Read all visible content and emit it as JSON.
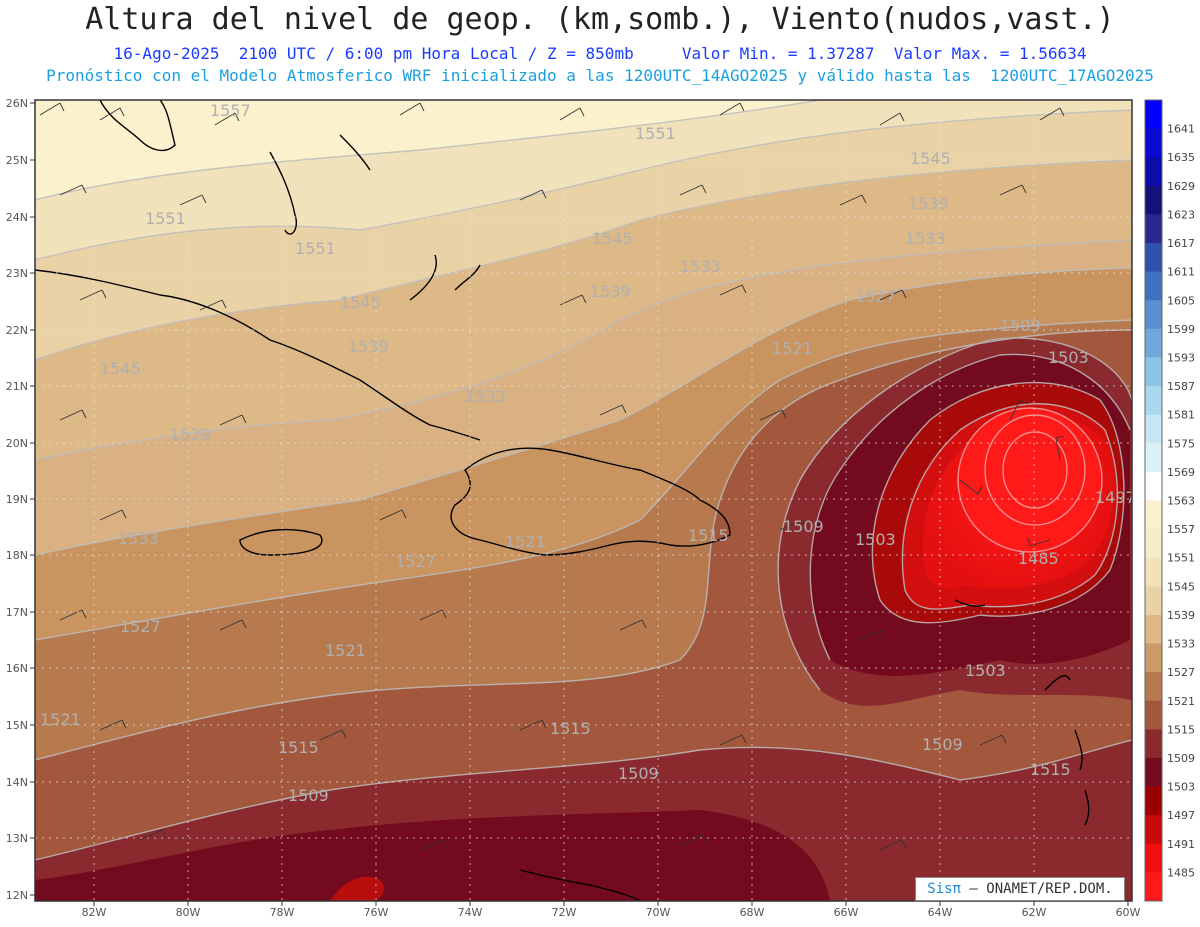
{
  "header": {
    "title": "Altura del nivel de geop. (km,somb.), Viento(nudos,vast.)",
    "line1_left": "16-Ago-2025  2100 UTC / 6:00 pm Hora Local / Z = 850mb",
    "line1_right": "Valor Min. = 1.37287  Valor Max. = 1.56634",
    "line2": "Pronóstico con el Modelo Atmosferico WRF inicializado a las 1200UTC_14AGO2025 y válido hasta las  1200UTC_17AGO2025"
  },
  "axes": {
    "lat_labels": [
      "26N",
      "25N",
      "24N",
      "23N",
      "22N",
      "21N",
      "20N",
      "19N",
      "18N",
      "17N",
      "16N",
      "15N",
      "14N",
      "13N",
      "12N"
    ],
    "lon_labels": [
      "82W",
      "80W",
      "78W",
      "76W",
      "74W",
      "72W",
      "70W",
      "68W",
      "66W",
      "64W",
      "62W",
      "60W"
    ]
  },
  "colorbar": {
    "levels": [
      "1641",
      "1635",
      "1629",
      "1623",
      "1617",
      "1611",
      "1605",
      "1599",
      "1593",
      "1587",
      "1581",
      "1575",
      "1569",
      "1563",
      "1557",
      "1551",
      "1545",
      "1539",
      "1533",
      "1527",
      "1521",
      "1515",
      "1509",
      "1503",
      "1497",
      "1491",
      "1485"
    ],
    "colors": [
      "#0000ff",
      "#0a0ad0",
      "#0c0ca8",
      "#12127a",
      "#282890",
      "#3050b0",
      "#4070c0",
      "#5a90d0",
      "#70a8dc",
      "#8cc4e6",
      "#aad8ee",
      "#c8e6f4",
      "#dcf0f8",
      "#ffffff",
      "#fbf1cc",
      "#f6eccb",
      "#f1e2bc",
      "#e9d3a6",
      "#ddb987",
      "#cc9a66",
      "#b77a4e",
      "#a3583e",
      "#8a2a2e",
      "#730a1e",
      "#9a0000",
      "#c80a0a",
      "#ee1010",
      "#ff1a1a"
    ]
  },
  "contour_labels": [
    "1557",
    "1551",
    "1551",
    "1551",
    "1545",
    "1545",
    "1545",
    "1545",
    "1539",
    "1539",
    "1539",
    "1539",
    "1533",
    "1533",
    "1533",
    "1533",
    "1527",
    "1527",
    "1527",
    "1521",
    "1521",
    "1521",
    "1521",
    "1515",
    "1515",
    "1515",
    "1515",
    "1509",
    "1509",
    "1509",
    "1509",
    "1509",
    "1503",
    "1503",
    "1503",
    "1497",
    "1485"
  ],
  "credit": {
    "brand": "Sisπ",
    "text": "– ONAMET/REP.DOM."
  }
}
